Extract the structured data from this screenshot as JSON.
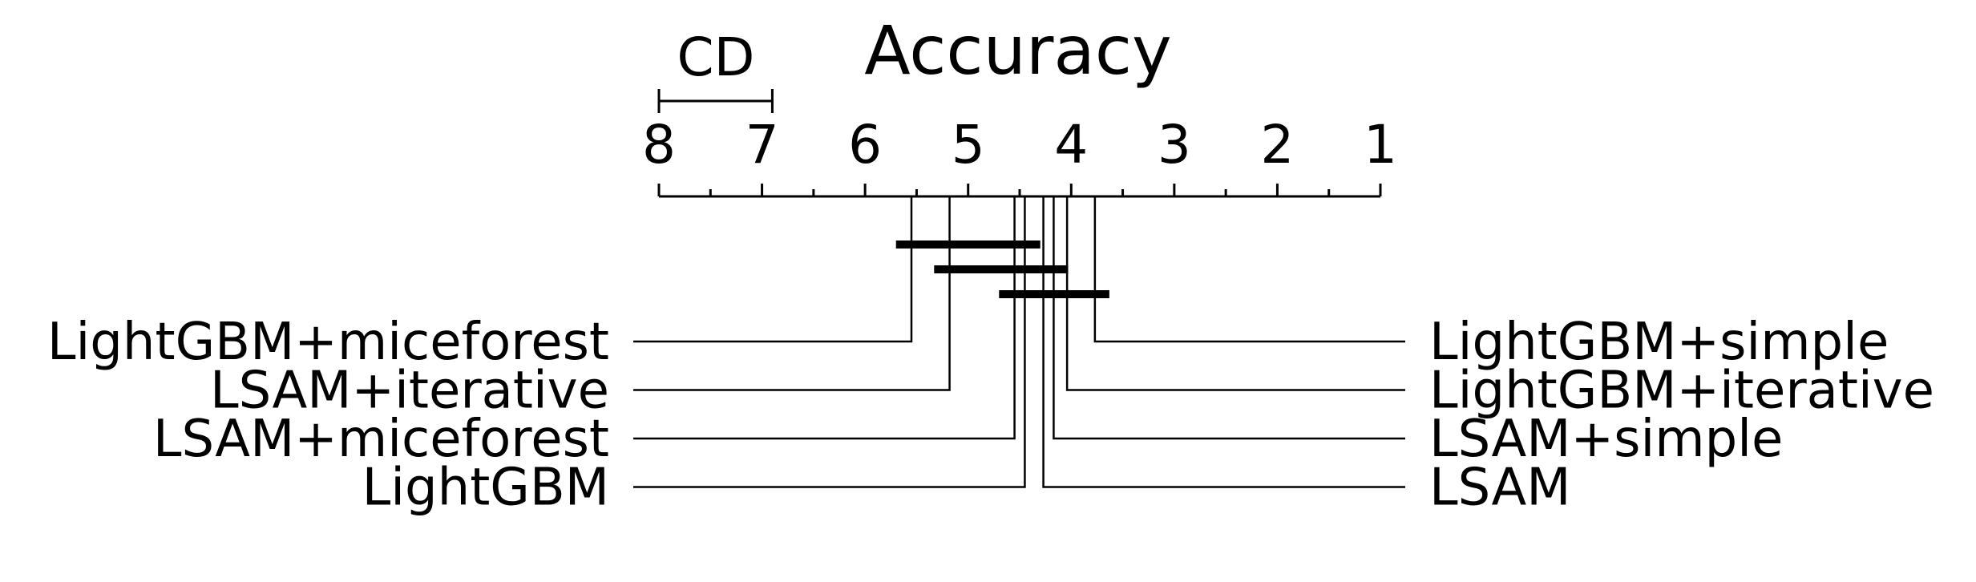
{
  "chart_data": {
    "type": "critical-difference",
    "title": "Accuracy",
    "axis": {
      "range": [
        8,
        1
      ],
      "major_ticks": [
        8,
        7,
        6,
        5,
        4,
        3,
        2,
        1
      ],
      "minor_step": 0.5
    },
    "cd": {
      "label": "CD",
      "value": 1.1
    },
    "left_methods": [
      {
        "name": "LightGBM+miceforest",
        "rank": 5.55
      },
      {
        "name": "LSAM+iterative",
        "rank": 5.18
      },
      {
        "name": "LSAM+miceforest",
        "rank": 4.55
      },
      {
        "name": "LightGBM",
        "rank": 4.45
      }
    ],
    "right_methods": [
      {
        "name": "LightGBM+simple",
        "rank": 3.77
      },
      {
        "name": "LightGBM+iterative",
        "rank": 4.04
      },
      {
        "name": "LSAM+simple",
        "rank": 4.17
      },
      {
        "name": "LSAM",
        "rank": 4.27
      }
    ],
    "cliques": [
      {
        "from": 5.7,
        "to": 4.3
      },
      {
        "from": 5.33,
        "to": 4.03
      },
      {
        "from": 4.7,
        "to": 3.63
      }
    ]
  }
}
